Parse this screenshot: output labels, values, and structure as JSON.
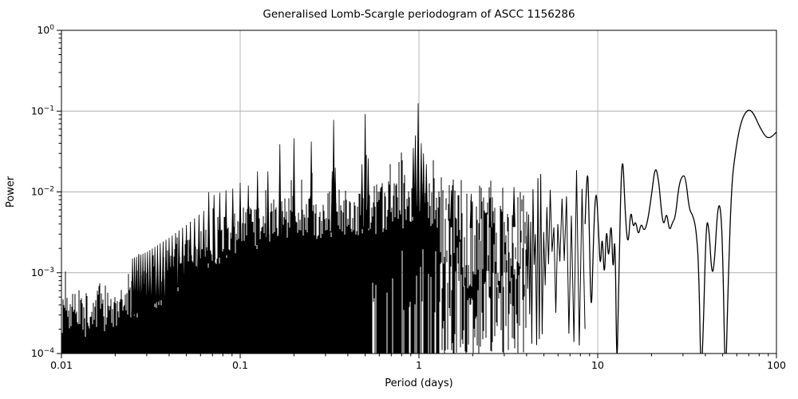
{
  "chart_data": {
    "type": "line",
    "title": "Generalised Lomb-Scargle periodogram of ASCC 1156286",
    "xlabel": "Period (days)",
    "ylabel": "Power",
    "x_scale": "log",
    "y_scale": "log",
    "xlim": [
      0.01,
      100
    ],
    "ylim": [
      0.0001,
      1
    ],
    "grid": true,
    "legend": false,
    "line_color": "#000000",
    "grid_color": "#b0b0b0",
    "background_color": "#ffffff",
    "x_ticks": [
      {
        "value": 0.01,
        "label": "0.01"
      },
      {
        "value": 0.1,
        "label": "0.1"
      },
      {
        "value": 1,
        "label": "1"
      },
      {
        "value": 10,
        "label": "10"
      },
      {
        "value": 100,
        "label": "100"
      }
    ],
    "y_tick_exponents": [
      0,
      -1,
      -2,
      -3,
      -4
    ],
    "alias_peaks": [
      {
        "period": 0.99,
        "power": 0.125
      },
      {
        "period": 0.5,
        "power": 0.092
      },
      {
        "period": 0.3333,
        "power": 0.078
      },
      {
        "period": 0.25,
        "power": 0.042
      },
      {
        "period": 0.2,
        "power": 0.046
      },
      {
        "period": 0.1667,
        "power": 0.039
      },
      {
        "period": 0.1429,
        "power": 0.018
      },
      {
        "period": 0.125,
        "power": 0.018
      },
      {
        "period": 0.1111,
        "power": 0.012
      },
      {
        "period": 0.1,
        "power": 0.013
      },
      {
        "period": 0.0909,
        "power": 0.011
      },
      {
        "period": 0.0833,
        "power": 0.0105
      },
      {
        "period": 0.0769,
        "power": 0.0098
      },
      {
        "period": 0.0714,
        "power": 0.0092
      },
      {
        "period": 0.0667,
        "power": 0.0099
      }
    ],
    "secondary_peaks": [
      {
        "period": 0.93,
        "power": 0.035
      },
      {
        "period": 0.955,
        "power": 0.05
      },
      {
        "period": 1.03,
        "power": 0.04
      },
      {
        "period": 1.06,
        "power": 0.03
      },
      {
        "period": 1.1,
        "power": 0.022
      },
      {
        "period": 0.48,
        "power": 0.022
      },
      {
        "period": 0.52,
        "power": 0.026
      },
      {
        "period": 0.327,
        "power": 0.018
      },
      {
        "period": 0.34,
        "power": 0.02
      },
      {
        "period": 1.52,
        "power": 0.0105
      },
      {
        "period": 1.96,
        "power": 0.0095
      },
      {
        "period": 2.5,
        "power": 0.0085
      },
      {
        "period": 3.4,
        "power": 0.0115
      }
    ],
    "alias_comb_rule": {
      "n_from": 16,
      "n_to": 40,
      "height_factor": 3.0
    },
    "noise_floor": 0.0001,
    "noise_envelope": [
      {
        "period": 0.01,
        "power": 0.00028
      },
      {
        "period": 0.014,
        "power": 0.00032
      },
      {
        "period": 0.02,
        "power": 0.0004
      },
      {
        "period": 0.03,
        "power": 0.0006
      },
      {
        "period": 0.04,
        "power": 0.0009
      },
      {
        "period": 0.05,
        "power": 0.0013
      },
      {
        "period": 0.06,
        "power": 0.0018
      },
      {
        "period": 0.07,
        "power": 0.0024
      },
      {
        "period": 0.085,
        "power": 0.0028
      },
      {
        "period": 0.1,
        "power": 0.0032
      },
      {
        "period": 0.13,
        "power": 0.0038
      },
      {
        "period": 0.17,
        "power": 0.0044
      },
      {
        "period": 0.22,
        "power": 0.0048
      },
      {
        "period": 0.3,
        "power": 0.0052
      },
      {
        "period": 0.4,
        "power": 0.0056
      },
      {
        "period": 0.55,
        "power": 0.006
      },
      {
        "period": 0.7,
        "power": 0.0062
      },
      {
        "period": 0.85,
        "power": 0.0075
      },
      {
        "period": 1.0,
        "power": 0.009
      },
      {
        "period": 1.15,
        "power": 0.0075
      },
      {
        "period": 1.4,
        "power": 0.0062
      },
      {
        "period": 2.0,
        "power": 0.006
      },
      {
        "period": 3.0,
        "power": 0.0062
      },
      {
        "period": 4.0,
        "power": 0.0062
      },
      {
        "period": 5.0,
        "power": 0.0065
      },
      {
        "period": 6.0,
        "power": 0.0065
      },
      {
        "period": 7.0,
        "power": 0.0068
      },
      {
        "period": 8.5,
        "power": 0.007
      }
    ],
    "region_boundaries": {
      "bars_max_period": 4.0,
      "zigzag_max_period": 8.5
    },
    "smooth_curve": [
      {
        "period": 8.5,
        "power": 0.004
      },
      {
        "period": 8.75,
        "power": 0.029
      },
      {
        "period": 8.95,
        "power": 0.005
      },
      {
        "period": 9.2,
        "power": 0.0002
      },
      {
        "period": 9.5,
        "power": 0.0035
      },
      {
        "period": 9.8,
        "power": 0.0126
      },
      {
        "period": 10.1,
        "power": 0.0035
      },
      {
        "period": 10.35,
        "power": 0.001
      },
      {
        "period": 10.6,
        "power": 0.0035
      },
      {
        "period": 10.9,
        "power": 0.0007
      },
      {
        "period": 11.2,
        "power": 0.0045
      },
      {
        "period": 11.5,
        "power": 0.0012
      },
      {
        "period": 11.9,
        "power": 0.0055
      },
      {
        "period": 12.2,
        "power": 0.0008
      },
      {
        "period": 12.5,
        "power": 0.0042
      },
      {
        "period": 12.8,
        "power": 4e-05
      },
      {
        "period": 13.1,
        "power": 0.0008
      },
      {
        "period": 13.7,
        "power": 0.047
      },
      {
        "period": 14.3,
        "power": 0.0045
      },
      {
        "period": 14.8,
        "power": 0.002
      },
      {
        "period": 15.3,
        "power": 0.0065
      },
      {
        "period": 15.8,
        "power": 0.0035
      },
      {
        "period": 16.3,
        "power": 0.0045
      },
      {
        "period": 16.9,
        "power": 0.0028
      },
      {
        "period": 17.5,
        "power": 0.0042
      },
      {
        "period": 18.2,
        "power": 0.0032
      },
      {
        "period": 19.0,
        "power": 0.0042
      },
      {
        "period": 20.0,
        "power": 0.009
      },
      {
        "period": 21.0,
        "power": 0.022
      },
      {
        "period": 22.0,
        "power": 0.0135
      },
      {
        "period": 22.8,
        "power": 0.0052
      },
      {
        "period": 23.5,
        "power": 0.0038
      },
      {
        "period": 24.3,
        "power": 0.0058
      },
      {
        "period": 25.2,
        "power": 0.0032
      },
      {
        "period": 26.2,
        "power": 0.0042
      },
      {
        "period": 27.2,
        "power": 0.0048
      },
      {
        "period": 28.5,
        "power": 0.0125
      },
      {
        "period": 29.8,
        "power": 0.016
      },
      {
        "period": 31.0,
        "power": 0.0155
      },
      {
        "period": 32.5,
        "power": 0.006
      },
      {
        "period": 34.0,
        "power": 0.0052
      },
      {
        "period": 35.5,
        "power": 0.0035
      },
      {
        "period": 36.8,
        "power": 0.0012
      },
      {
        "period": 37.8,
        "power": 4e-05
      },
      {
        "period": 39.0,
        "power": 0.0002
      },
      {
        "period": 40.5,
        "power": 0.0048
      },
      {
        "period": 42.0,
        "power": 0.0035
      },
      {
        "period": 43.5,
        "power": 0.0009
      },
      {
        "period": 45.0,
        "power": 0.0013
      },
      {
        "period": 46.8,
        "power": 0.0062
      },
      {
        "period": 48.5,
        "power": 0.0072
      },
      {
        "period": 50.0,
        "power": 0.0022
      },
      {
        "period": 51.8,
        "power": 3e-05
      },
      {
        "period": 53.5,
        "power": 0.0006
      },
      {
        "period": 56.0,
        "power": 0.012
      },
      {
        "period": 59.0,
        "power": 0.032
      },
      {
        "period": 62.0,
        "power": 0.06
      },
      {
        "period": 65.0,
        "power": 0.085
      },
      {
        "period": 68.0,
        "power": 0.1
      },
      {
        "period": 71.0,
        "power": 0.104
      },
      {
        "period": 74.0,
        "power": 0.095
      },
      {
        "period": 77.0,
        "power": 0.08
      },
      {
        "period": 80.0,
        "power": 0.066
      },
      {
        "period": 83.0,
        "power": 0.057
      },
      {
        "period": 86.0,
        "power": 0.05
      },
      {
        "period": 89.0,
        "power": 0.047
      },
      {
        "period": 92.0,
        "power": 0.047
      },
      {
        "period": 95.0,
        "power": 0.049
      },
      {
        "period": 100.0,
        "power": 0.055
      }
    ],
    "noise_seed": 42
  }
}
